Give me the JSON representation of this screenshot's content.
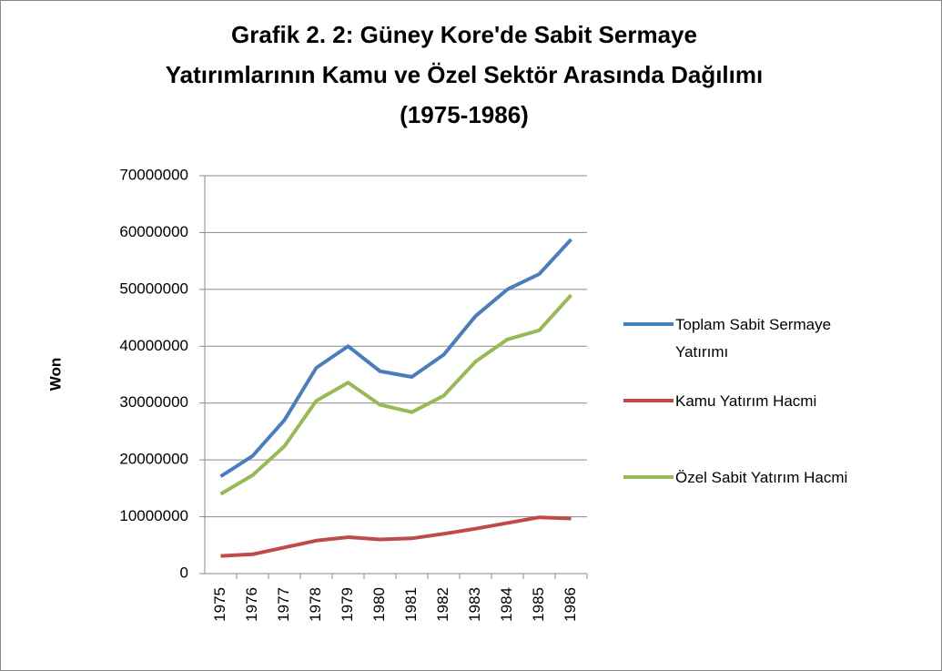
{
  "chart_data": {
    "type": "line",
    "title": "Grafik 2. 2: Güney Kore'de Sabit Sermaye Yatırımlarının Kamu ve Özel Sektör Arasında Dağılımı (1975-1986)",
    "ylabel": "Won",
    "categories": [
      "1975",
      "1976",
      "1977",
      "1978",
      "1979",
      "1980",
      "1981",
      "1982",
      "1983",
      "1984",
      "1985",
      "1986"
    ],
    "series": [
      {
        "name": "Toplam Sabit Sermaye Yatırımı",
        "color": "#4a7ebb",
        "values": [
          17100000,
          20700000,
          27000000,
          36200000,
          40000000,
          35600000,
          34600000,
          38500000,
          45300000,
          50000000,
          52700000,
          58800000
        ]
      },
      {
        "name": "Kamu Yatırım Hacmi",
        "color": "#be4b48",
        "values": [
          3100000,
          3400000,
          4600000,
          5800000,
          6400000,
          6000000,
          6200000,
          7000000,
          7900000,
          8900000,
          9900000,
          9700000
        ]
      },
      {
        "name": "Özel Sabit Yatırım Hacmi",
        "color": "#98b954",
        "values": [
          14000000,
          17300000,
          22400000,
          30400000,
          33600000,
          29700000,
          28400000,
          31300000,
          37300000,
          41200000,
          42800000,
          49000000
        ]
      }
    ],
    "ylim": [
      0,
      70000000
    ],
    "yticks": [
      0,
      10000000,
      20000000,
      30000000,
      40000000,
      50000000,
      60000000,
      70000000
    ],
    "grid": true,
    "legend": "right"
  }
}
